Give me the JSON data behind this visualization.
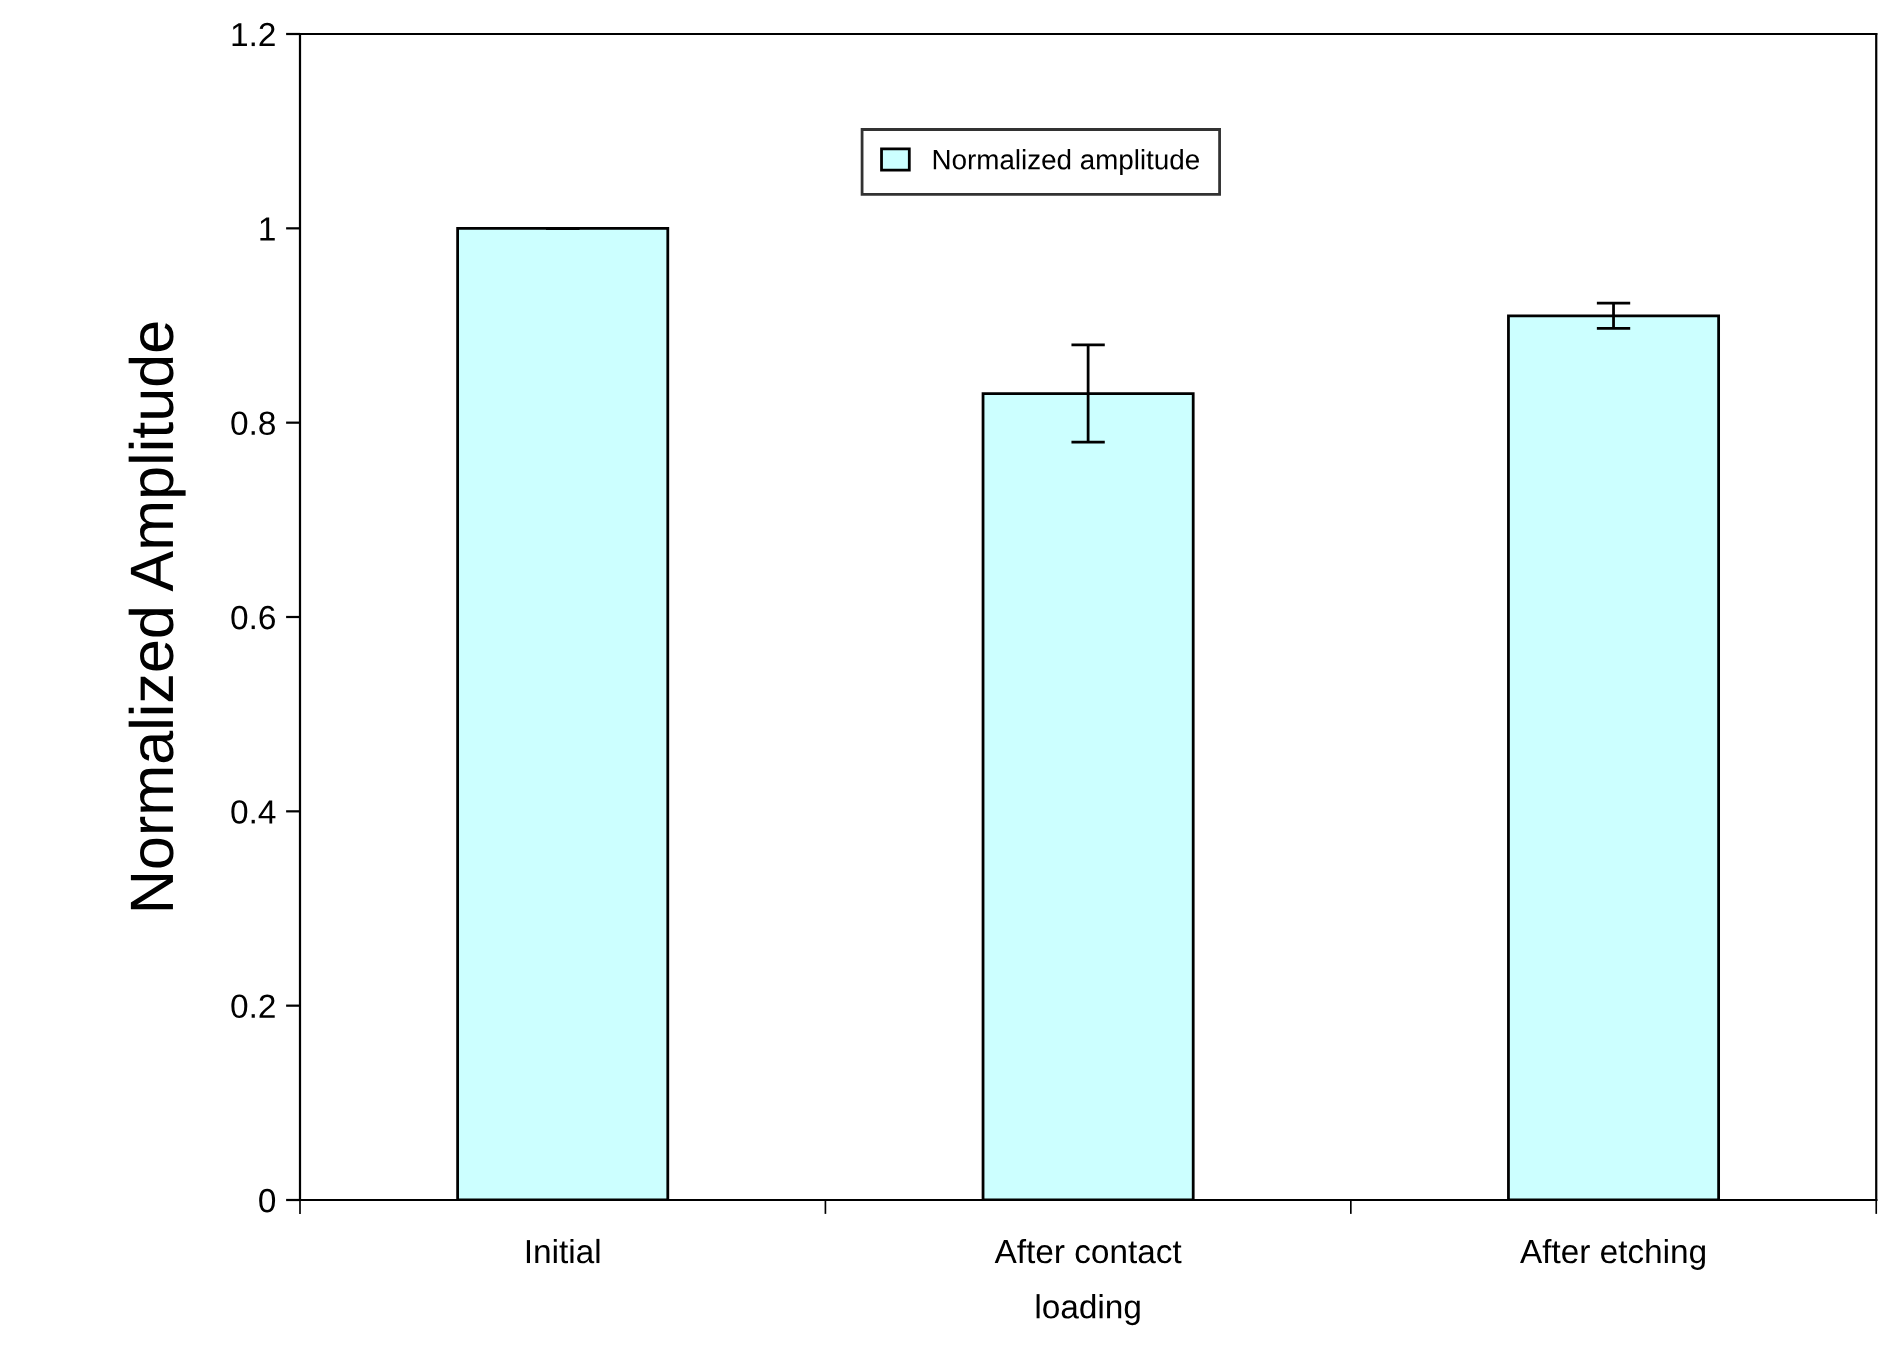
{
  "chart_data": {
    "type": "bar",
    "ylabel": "Normalized Amplitude",
    "categories": [
      "Initial",
      "After contact\nloading",
      "After etching"
    ],
    "series": [
      {
        "name": "Normalized amplitude",
        "color": "#ccffff",
        "values": [
          1.0,
          0.83,
          0.91
        ],
        "errors": [
          null,
          0.05,
          0.013
        ]
      }
    ],
    "ylim": [
      0,
      1.2
    ],
    "yticks": [
      0,
      0.2,
      0.4,
      0.6,
      0.8,
      1,
      1.2
    ],
    "grid": false,
    "legend": "top"
  }
}
